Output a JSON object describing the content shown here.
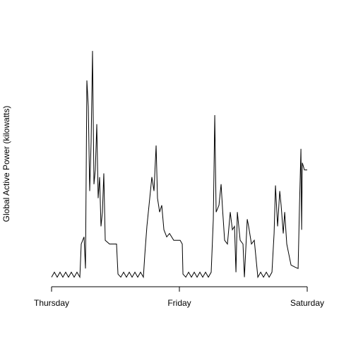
{
  "chart_data": {
    "type": "line",
    "ylabel": "Global Active Power (kilowatts)",
    "xlim": [
      0,
      48
    ],
    "xticks": [
      {
        "value": 0,
        "label": "Thursday"
      },
      {
        "value": 24,
        "label": "Friday"
      },
      {
        "value": 48,
        "label": "Saturday"
      }
    ],
    "ylim": [
      -0.2,
      7.8
    ],
    "series": [
      {
        "color": "#000000",
        "x": [
          0,
          0.53,
          1.06,
          1.59,
          2.12,
          2.65,
          3.18,
          3.71,
          4.24,
          4.77,
          5.31,
          5.57,
          6.1,
          6.37,
          6.63,
          6.9,
          7.16,
          7.43,
          7.69,
          7.96,
          8.22,
          8.49,
          8.75,
          9.02,
          9.28,
          9.55,
          9.81,
          10.08,
          10.88,
          12.2,
          12.47,
          13.0,
          13.53,
          14.06,
          14.59,
          15.12,
          15.65,
          16.18,
          16.71,
          17.24,
          17.51,
          17.9,
          18.3,
          18.57,
          18.83,
          19.23,
          19.63,
          19.89,
          20.29,
          20.69,
          21.09,
          21.62,
          22.15,
          22.94,
          24.14,
          24.54,
          24.67,
          25.2,
          25.73,
          26.26,
          26.79,
          27.32,
          27.85,
          28.38,
          28.91,
          29.44,
          29.97,
          30.37,
          30.64,
          30.9,
          31.43,
          31.83,
          32.1,
          32.49,
          33.02,
          33.55,
          33.95,
          34.35,
          34.62,
          34.88,
          35.41,
          35.94,
          36.21,
          36.74,
          37.0,
          37.53,
          38.06,
          38.73,
          39.26,
          39.79,
          40.32,
          40.85,
          41.38,
          41.78,
          42.04,
          42.44,
          42.84,
          43.1,
          43.5,
          43.77,
          44.16,
          44.56,
          44.96,
          45.76,
          46.29,
          46.55,
          46.82,
          46.95,
          47.08,
          47.48,
          48.0
        ],
        "values": [
          0.2,
          0.36,
          0.2,
          0.36,
          0.2,
          0.36,
          0.2,
          0.36,
          0.2,
          0.36,
          0.2,
          1.27,
          1.5,
          0.48,
          6.55,
          5.7,
          2.98,
          4.57,
          7.5,
          3.2,
          3.66,
          5.14,
          2.75,
          3.43,
          1.84,
          2.3,
          3.55,
          1.39,
          1.27,
          1.27,
          0.3,
          0.2,
          0.36,
          0.2,
          0.36,
          0.2,
          0.36,
          0.2,
          0.36,
          0.2,
          0.93,
          1.84,
          2.52,
          2.98,
          3.43,
          2.98,
          4.45,
          2.75,
          2.3,
          2.52,
          1.73,
          1.5,
          1.61,
          1.39,
          1.39,
          1.27,
          0.3,
          0.2,
          0.36,
          0.2,
          0.36,
          0.2,
          0.36,
          0.2,
          0.36,
          0.2,
          0.36,
          2.07,
          5.43,
          2.3,
          2.52,
          3.2,
          2.41,
          1.39,
          1.27,
          2.3,
          1.73,
          1.84,
          0.36,
          2.3,
          1.39,
          1.27,
          0.2,
          2.07,
          1.84,
          1.27,
          1.39,
          0.2,
          0.36,
          0.2,
          0.36,
          0.2,
          0.36,
          1.61,
          3.16,
          1.84,
          2.98,
          2.52,
          1.61,
          2.3,
          1.27,
          0.93,
          0.59,
          0.52,
          0.48,
          2.52,
          4.34,
          1.73,
          3.89,
          3.66,
          3.66
        ]
      }
    ]
  }
}
